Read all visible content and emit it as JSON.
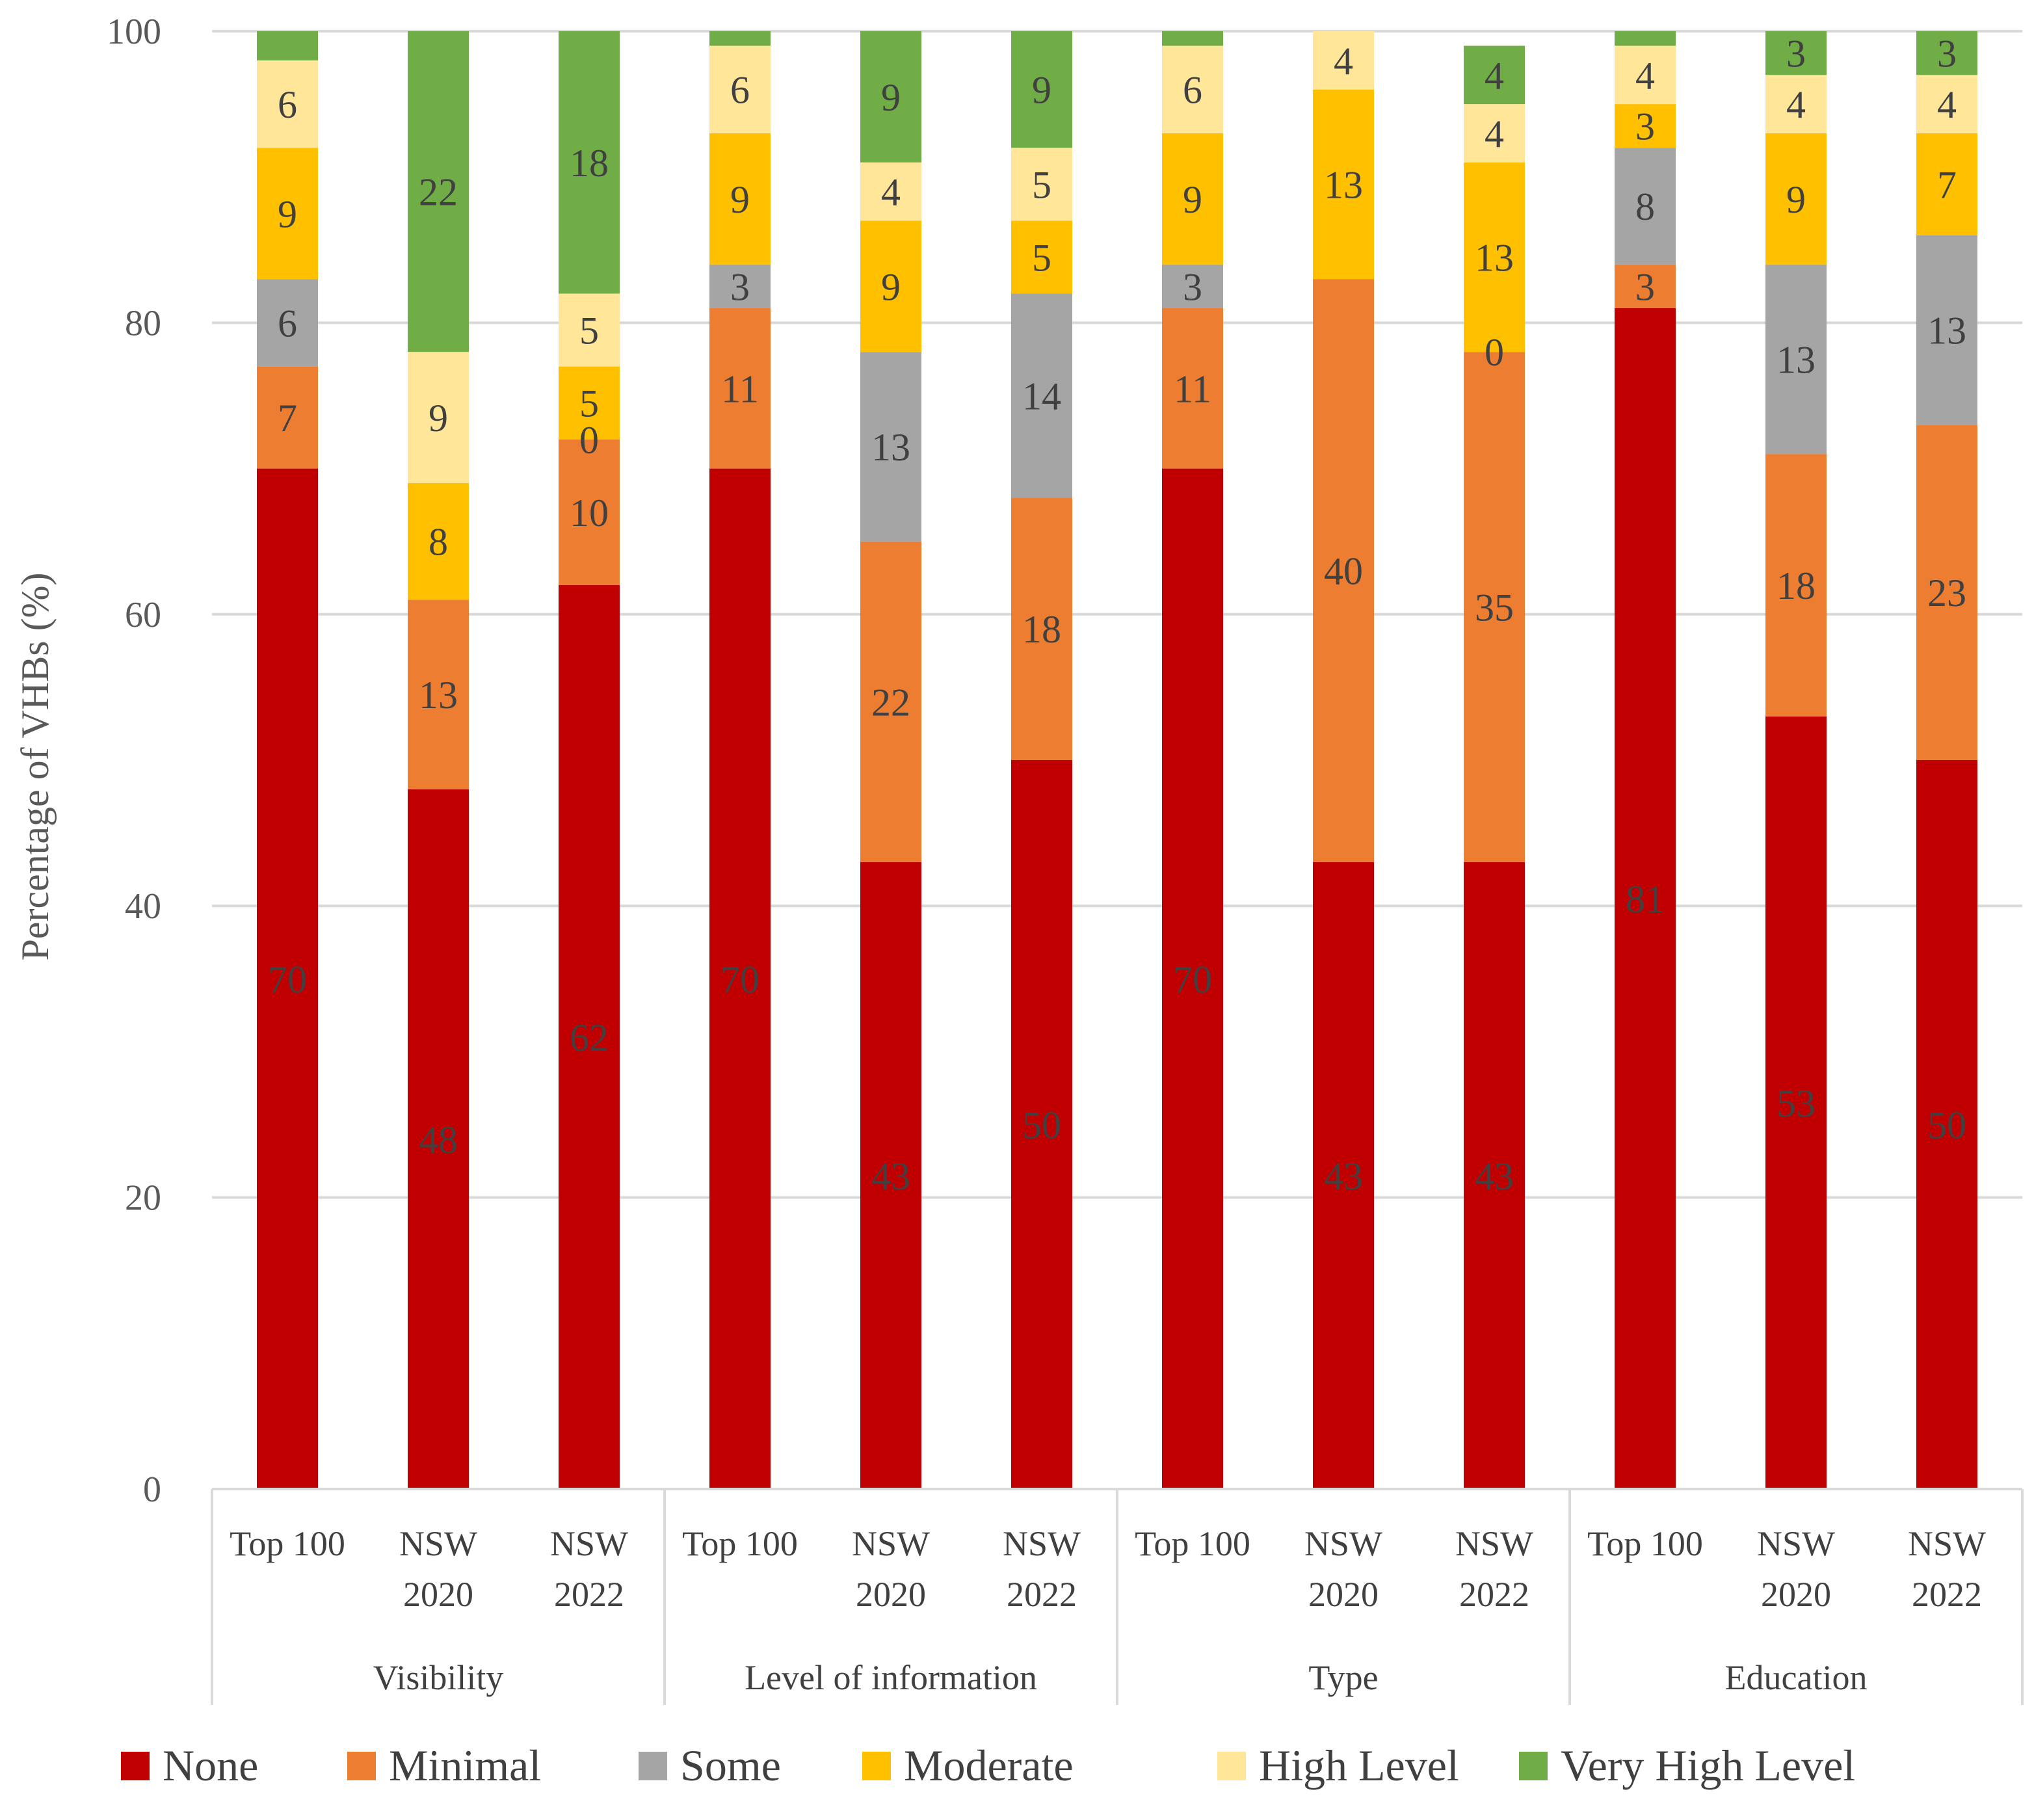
{
  "chart_data": {
    "type": "bar",
    "stacked": true,
    "title": "",
    "xlabel": "",
    "ylabel": "Percentage of VHBs (%)",
    "ylim": [
      0,
      100
    ],
    "yticks": [
      0,
      20,
      40,
      60,
      80,
      100
    ],
    "grid": true,
    "legend_position": "bottom",
    "groups": [
      {
        "name": "Visibility",
        "categories": [
          "Top 100",
          "NSW 2020",
          "NSW 2022"
        ]
      },
      {
        "name": "Level of information",
        "categories": [
          "Top 100",
          "NSW 2020",
          "NSW 2022"
        ]
      },
      {
        "name": "Type",
        "categories": [
          "Top 100",
          "NSW 2020",
          "NSW 2022"
        ]
      },
      {
        "name": "Education",
        "categories": [
          "Top 100",
          "NSW 2020",
          "NSW 2022"
        ]
      }
    ],
    "categories": [
      "Top 100",
      "NSW 2020",
      "NSW 2022",
      "Top 100",
      "NSW 2020",
      "NSW 2022",
      "Top 100",
      "NSW 2020",
      "NSW 2022",
      "Top 100",
      "NSW 2020",
      "NSW 2022"
    ],
    "series": [
      {
        "name": "None",
        "color": "#C00000",
        "values": [
          70,
          48,
          62,
          70,
          43,
          50,
          70,
          43,
          43,
          81,
          53,
          50
        ]
      },
      {
        "name": "Minimal",
        "color": "#ED7D31",
        "values": [
          7,
          13,
          10,
          11,
          22,
          18,
          11,
          40,
          35,
          3,
          18,
          23
        ]
      },
      {
        "name": "Some",
        "color": "#A5A5A5",
        "values": [
          6,
          0,
          0,
          3,
          13,
          14,
          3,
          0,
          0,
          8,
          13,
          13
        ]
      },
      {
        "name": "Moderate",
        "color": "#FFC000",
        "values": [
          9,
          8,
          5,
          9,
          9,
          5,
          9,
          13,
          13,
          3,
          9,
          7
        ]
      },
      {
        "name": "High Level",
        "color": "#FFE699",
        "values": [
          6,
          9,
          5,
          6,
          4,
          5,
          6,
          4,
          4,
          4,
          4,
          4
        ]
      },
      {
        "name": "Very High Level",
        "color": "#70AD47",
        "values": [
          2,
          22,
          18,
          1,
          9,
          9,
          1,
          0,
          4,
          1,
          3,
          3
        ]
      }
    ],
    "data_labels": [
      [
        "70",
        "7",
        "6",
        "9",
        "6",
        ""
      ],
      [
        "48",
        "13",
        "",
        "8",
        "9",
        "22"
      ],
      [
        "62",
        "10",
        "0",
        "5",
        "5",
        "18"
      ],
      [
        "70",
        "11",
        "3",
        "9",
        "6",
        ""
      ],
      [
        "43",
        "22",
        "13",
        "9",
        "4",
        "9"
      ],
      [
        "50",
        "18",
        "14",
        "5",
        "5",
        "9"
      ],
      [
        "70",
        "11",
        "3",
        "9",
        "6",
        ""
      ],
      [
        "43",
        "40",
        "",
        "13",
        "4",
        ""
      ],
      [
        "43",
        "35",
        "0",
        "13",
        "4",
        "4"
      ],
      [
        "81",
        "3",
        "8",
        "3",
        "4",
        ""
      ],
      [
        "53",
        "18",
        "13",
        "9",
        "4",
        "3"
      ],
      [
        "50",
        "23",
        "13",
        "7",
        "4",
        "3"
      ]
    ]
  }
}
